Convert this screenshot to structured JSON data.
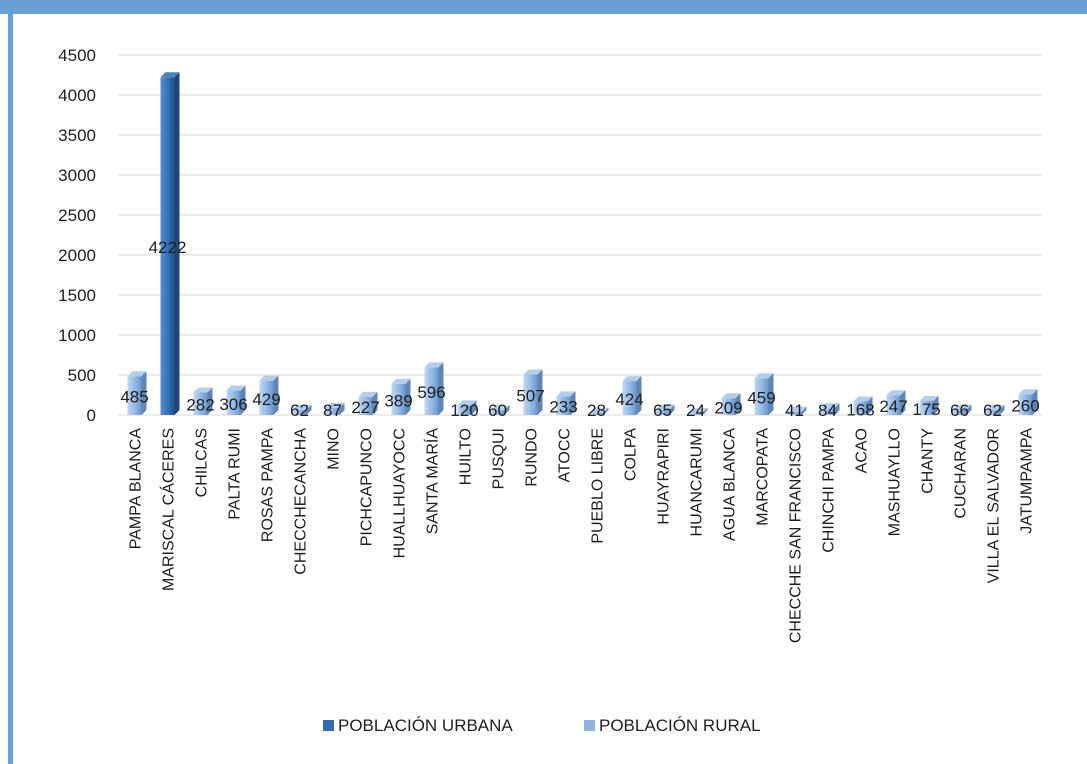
{
  "chart_data": {
    "type": "bar",
    "title": "",
    "xlabel": "",
    "ylabel": "",
    "ylim": [
      0,
      4500
    ],
    "yticks": [
      0,
      500,
      1000,
      1500,
      2000,
      2500,
      3000,
      3500,
      4000,
      4500
    ],
    "grid": true,
    "legend_position": "bottom",
    "categories": [
      "PAMPA BLANCA",
      "MARISCAL CÁCERES",
      "CHILCAS",
      "PALTA RUMI",
      "ROSAS PAMPA",
      "CHECCHECANCHA",
      "MINO",
      "PICHCAPUNCO",
      "HUALLHUAYOCC",
      "SANTA MARÍA",
      "HUILTO",
      "PUSQUI",
      "RUNDO",
      "ATOCC",
      "PUEBLO LIBRE",
      "COLPA",
      "HUAYRAPIRI",
      "HUANCARUMI",
      "AGUA BLANCA",
      "MARCOPATA",
      "CHECCHE SAN FRANCISCO",
      "CHINCHI PAMPA",
      "ACAO",
      "MASHUAYLLO",
      "CHANTY",
      "CUCHARAN",
      "VILLA EL SALVADOR",
      "JATUMPAMPA"
    ],
    "series": [
      {
        "name": "POBLACIÓN URBANA",
        "color": "#2e6db4",
        "values": [
          null,
          4222,
          null,
          null,
          null,
          null,
          null,
          null,
          null,
          null,
          null,
          null,
          null,
          null,
          null,
          null,
          null,
          null,
          null,
          null,
          null,
          null,
          null,
          null,
          null,
          null,
          null,
          null
        ]
      },
      {
        "name": "POBLACIÓN  RURAL",
        "color": "#8db4e2",
        "values": [
          485,
          null,
          282,
          306,
          429,
          62,
          87,
          227,
          389,
          596,
          120,
          60,
          507,
          233,
          28,
          424,
          65,
          24,
          209,
          459,
          41,
          84,
          168,
          247,
          175,
          66,
          62,
          260
        ]
      }
    ],
    "data_labels": [
      "485",
      "4222",
      "282",
      "306",
      "429",
      "62",
      "87",
      "227",
      "389",
      "596",
      "120",
      "60",
      "507",
      "233",
      "28",
      "424",
      "65",
      "24",
      "209",
      "459",
      "41",
      "84",
      "168",
      "247",
      "175",
      "66",
      "62",
      "260"
    ]
  },
  "colors": {
    "frame": "#6a9fd6",
    "grid": "#d9d9d9",
    "text": "#1f1f1f"
  }
}
